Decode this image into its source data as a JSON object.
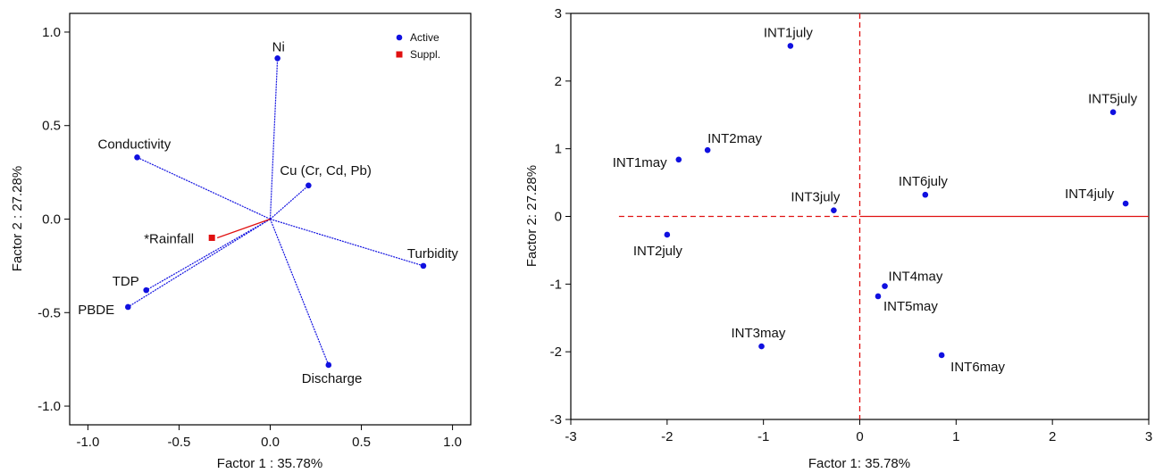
{
  "chart_data": [
    {
      "type": "scatter",
      "xlabel": "Factor 1 : 35.78%",
      "ylabel": "Factor 2 : 27.28%",
      "xlim": [
        -1.1,
        1.1
      ],
      "ylim": [
        -1.1,
        1.1
      ],
      "xticks": [
        "-1.0",
        "-0.5",
        "0.0",
        "0.5",
        "1.0"
      ],
      "yticks": [
        "1.0",
        "0.5",
        "0.0",
        "-0.5",
        "-1.0"
      ],
      "legend": {
        "position": "top-right",
        "entries": [
          {
            "label": "Active",
            "color": "#1010e0",
            "marker": "circle"
          },
          {
            "label": "Suppl.",
            "color": "#e01010",
            "marker": "square"
          }
        ]
      },
      "series": [
        {
          "name": "Active",
          "color": "#1010e0",
          "points": [
            {
              "label": "Ni",
              "x": 0.04,
              "y": 0.86
            },
            {
              "label": "Conductivity",
              "x": -0.73,
              "y": 0.33
            },
            {
              "label": "Cu (Cr, Cd, Pb)",
              "x": 0.21,
              "y": 0.18
            },
            {
              "label": "Turbidity",
              "x": 0.84,
              "y": -0.25
            },
            {
              "label": "TDP",
              "x": -0.68,
              "y": -0.38
            },
            {
              "label": "PBDE",
              "x": -0.78,
              "y": -0.47
            },
            {
              "label": "Discharge",
              "x": 0.32,
              "y": -0.78
            }
          ]
        },
        {
          "name": "Suppl.",
          "color": "#e01010",
          "points": [
            {
              "label": "*Rainfall",
              "x": -0.32,
              "y": -0.1
            }
          ]
        }
      ]
    },
    {
      "type": "scatter",
      "xlabel": "Factor 1: 35.78%",
      "ylabel": "Factor 2: 27.28%",
      "xlim": [
        -3,
        3
      ],
      "ylim": [
        -3,
        3
      ],
      "xticks": [
        "-3",
        "-2",
        "-1",
        "0",
        "1",
        "2",
        "3"
      ],
      "yticks": [
        "3",
        "2",
        "1",
        "0",
        "-1",
        "-2",
        "-3"
      ],
      "series": [
        {
          "color": "#1010e0",
          "points": [
            {
              "label": "INT1july",
              "x": -0.72,
              "y": 2.52
            },
            {
              "label": "INT5july",
              "x": 2.63,
              "y": 1.54
            },
            {
              "label": "INT2may",
              "x": -1.58,
              "y": 0.98
            },
            {
              "label": "INT1may",
              "x": -1.88,
              "y": 0.84
            },
            {
              "label": "INT6july",
              "x": 0.68,
              "y": 0.32
            },
            {
              "label": "INT3july",
              "x": -0.27,
              "y": 0.09
            },
            {
              "label": "INT4july",
              "x": 2.76,
              "y": 0.19
            },
            {
              "label": "INT2july",
              "x": -2.0,
              "y": -0.27
            },
            {
              "label": "INT4may",
              "x": 0.26,
              "y": -1.03
            },
            {
              "label": "INT5may",
              "x": 0.19,
              "y": -1.18
            },
            {
              "label": "INT3may",
              "x": -1.02,
              "y": -1.92
            },
            {
              "label": "INT6may",
              "x": 0.85,
              "y": -2.05
            }
          ]
        }
      ]
    }
  ]
}
